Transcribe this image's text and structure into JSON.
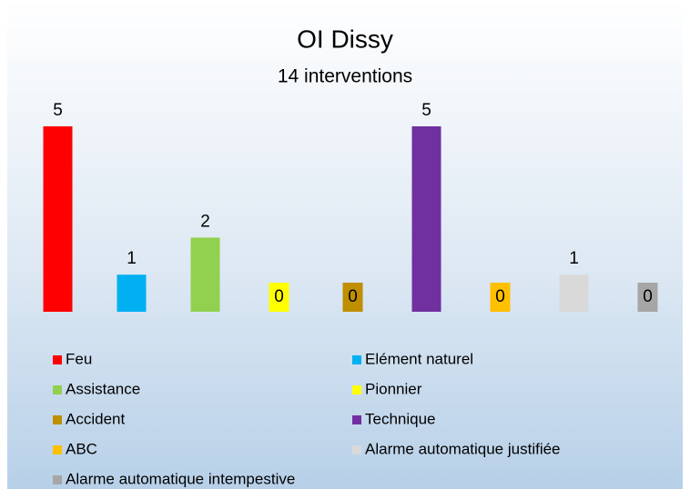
{
  "chart_data": {
    "type": "bar",
    "title": "OI Dissy",
    "subtitle": "14 interventions",
    "categories": [
      "Feu",
      "Elément naturel",
      "Assistance",
      "Pionnier",
      "Accident",
      "Technique",
      "ABC",
      "Alarme automatique justifiée",
      "Alarme automatique intempestive"
    ],
    "values": [
      5,
      1,
      2,
      0,
      0,
      5,
      0,
      1,
      0
    ],
    "colors": [
      "#ff0000",
      "#00b0f0",
      "#92d050",
      "#ffff00",
      "#bf8f00",
      "#7030a0",
      "#ffc000",
      "#d9d9d9",
      "#a6a6a6"
    ],
    "ylim": [
      0,
      5
    ]
  }
}
